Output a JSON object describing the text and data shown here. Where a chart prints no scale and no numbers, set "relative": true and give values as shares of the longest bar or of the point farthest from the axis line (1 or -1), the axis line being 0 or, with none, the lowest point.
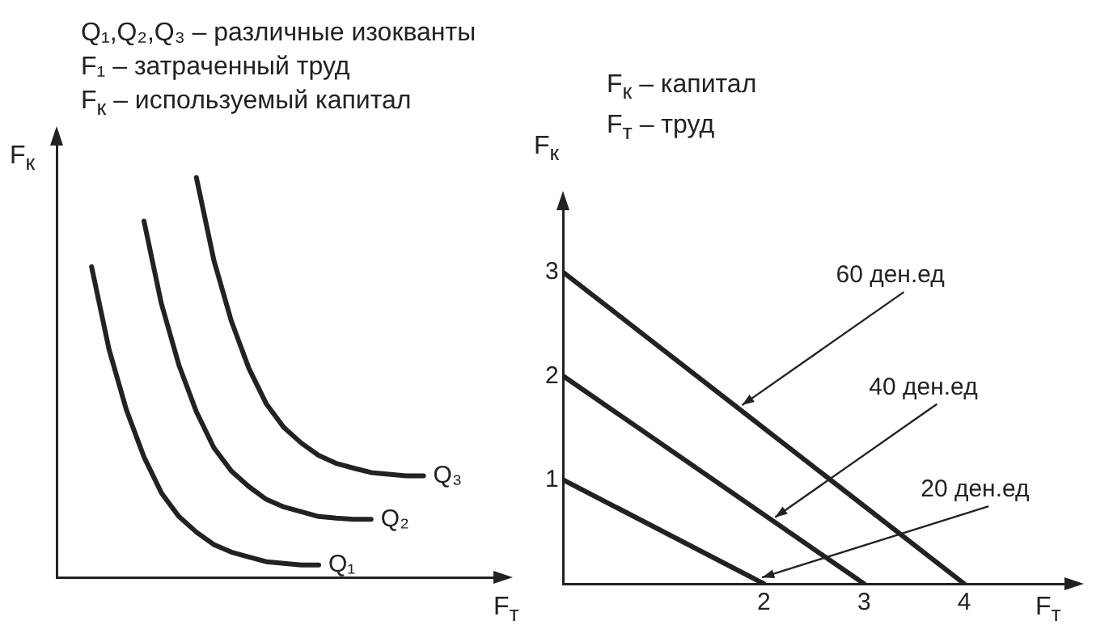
{
  "chart_data": [
    {
      "type": "line",
      "relative": true,
      "xlabel": "F$_{т}$",
      "ylabel": "F$_{к}$",
      "annotations": [
        "Q₁,Q₂,Q₃ – различные изокванты",
        "F₁ – затраченный труд",
        "F$_{к}$ – используемый капитал"
      ],
      "categories": [
        null,
        null,
        null,
        null,
        null,
        null,
        null,
        null,
        null,
        null,
        null,
        null,
        null,
        null,
        null,
        null,
        null,
        null,
        null,
        null,
        null,
        null,
        null,
        null,
        null,
        null
      ],
      "series": [
        {
          "name": "Q₁",
          "color": "#222222",
          "values": [
            null,
            null,
            0.777,
            0.57,
            0.418,
            0.301,
            0.211,
            0.152,
            0.113,
            0.082,
            0.063,
            0.051,
            0.039,
            0.035,
            0.031,
            0.031,
            null,
            null,
            null,
            null,
            null,
            null,
            null,
            null,
            null,
            null
          ]
        },
        {
          "name": "Q₂",
          "color": "#222222",
          "values": [
            null,
            null,
            null,
            null,
            null,
            0.891,
            0.684,
            0.531,
            0.414,
            0.324,
            0.266,
            0.227,
            0.195,
            0.176,
            0.164,
            0.152,
            0.148,
            0.145,
            0.145,
            null,
            null,
            null,
            null,
            null,
            null,
            null
          ]
        },
        {
          "name": "Q₃",
          "color": "#222222",
          "values": [
            null,
            null,
            null,
            null,
            null,
            null,
            null,
            null,
            1,
            0.793,
            0.641,
            0.523,
            0.434,
            0.375,
            0.336,
            0.305,
            0.285,
            0.273,
            0.262,
            0.258,
            0.254,
            0.254,
            null,
            null,
            null,
            null
          ]
        }
      ]
    },
    {
      "type": "line",
      "xlabel": "F$_{т}$",
      "ylabel": "F$_{к}$",
      "annotations": [
        "F$_{к}$ – капитал",
        "F$_{т}$ – труд",
        {
          "text": "60 ден.ед",
          "x": 1.75,
          "y": 1.69
        },
        {
          "text": "40 ден.ед",
          "x": 2.08,
          "y": 0.61
        },
        {
          "text": "20 ден.ед",
          "x": 1.95,
          "y": 0.03
        }
      ],
      "xlim": [
        0,
        5
      ],
      "xticks": [
        2,
        3,
        4
      ],
      "ylim": [
        0,
        3.6
      ],
      "yticks": [
        1,
        2,
        3
      ],
      "series": [
        {
          "color": "#222222",
          "x": [
            0,
            2
          ],
          "values": [
            1,
            0
          ]
        },
        {
          "color": "#222222",
          "x": [
            0,
            3
          ],
          "values": [
            2,
            0
          ]
        },
        {
          "color": "#222222",
          "x": [
            0,
            4
          ],
          "values": [
            3,
            0
          ]
        }
      ]
    }
  ]
}
